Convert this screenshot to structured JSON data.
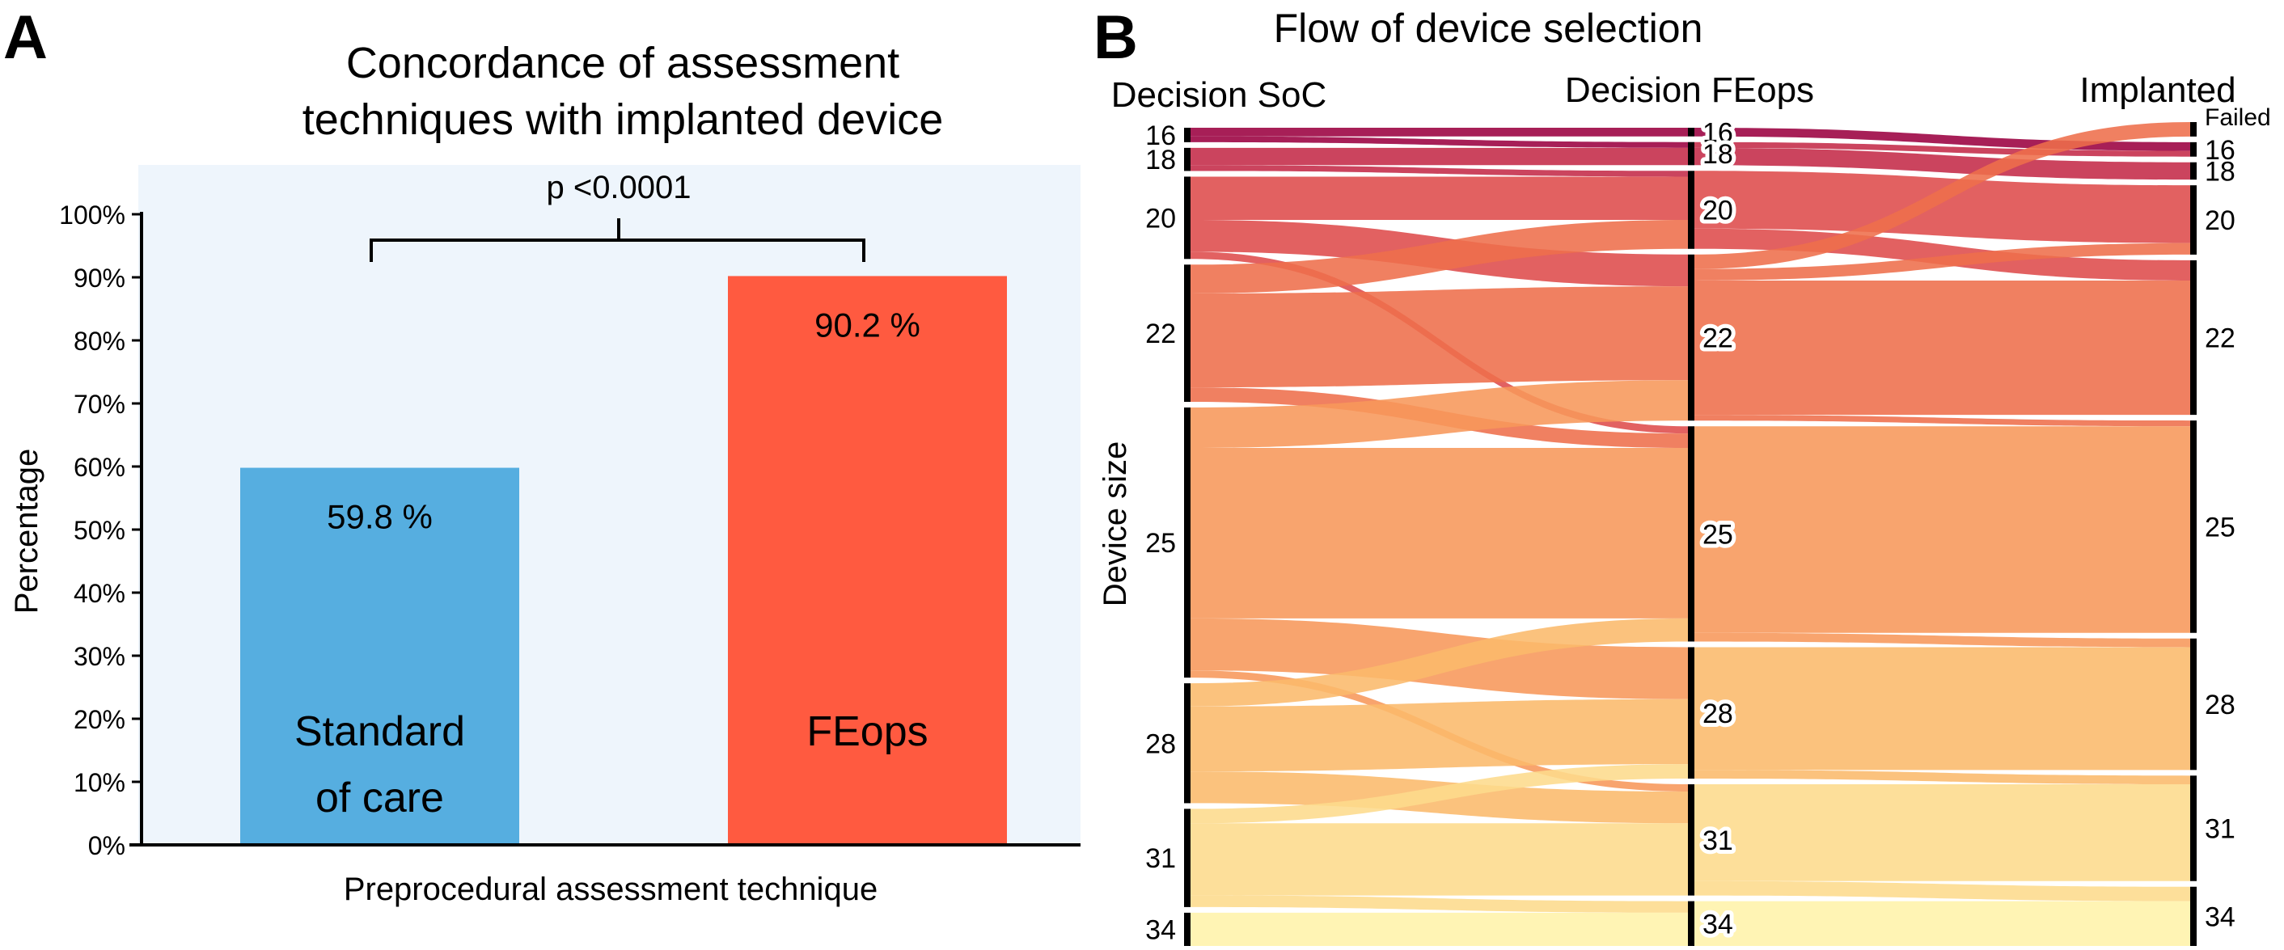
{
  "chart_data": [
    {
      "panel_label": "A",
      "type": "bar",
      "title": "Concordance of assessment techniques with implanted device",
      "title_lines": [
        "Concordance of assessment",
        "techniques with implanted device"
      ],
      "xlabel": "Preprocedural assessment technique",
      "ylabel": "Percentage",
      "categories": [
        "Standard of care",
        "FEops"
      ],
      "category_lines": [
        [
          "Standard",
          "of care"
        ],
        [
          "FEops"
        ]
      ],
      "values": [
        59.8,
        90.2
      ],
      "data_labels": [
        "59.8 %",
        "90.2 %"
      ],
      "ylim": [
        0,
        100
      ],
      "yticks": [
        "0%",
        "10%",
        "20%",
        "30%",
        "40%",
        "50%",
        "60%",
        "70%",
        "80%",
        "90%",
        "100%"
      ],
      "annotation": "p <0.0001",
      "colors": {
        "Standard of care": "#56aee0",
        "FEops": "#ff5a40",
        "background": "#eef5fc"
      },
      "grid": false
    },
    {
      "panel_label": "B",
      "type": "sankey",
      "title": "Flow of device selection",
      "ylabel": "Device size",
      "columns": [
        {
          "name": "Decision SoC",
          "nodes": [
            "16",
            "18",
            "20",
            "22",
            "25",
            "28",
            "31",
            "34"
          ]
        },
        {
          "name": "Decision FEops",
          "nodes": [
            "16",
            "18",
            "20",
            "22",
            "25",
            "28",
            "31",
            "34"
          ]
        },
        {
          "name": "Implanted",
          "nodes": [
            "Failed",
            "16",
            "18",
            "20",
            "22",
            "25",
            "28",
            "31",
            "34"
          ]
        }
      ],
      "node_colors": {
        "Failed": "#f26b3c",
        "16": "#9b0040",
        "18": "#c42a48",
        "20": "#de4b4b",
        "22": "#ee6e4b",
        "25": "#f7975a",
        "28": "#fbb96b",
        "31": "#fddb8c",
        "34": "#fff3aa"
      },
      "flows_note_units": "relative (estimated)",
      "flows": [
        [
          [
            "16",
            "16",
            6
          ],
          [
            "16",
            "18",
            4
          ],
          [
            "18",
            "18",
            12
          ],
          [
            "18",
            "20",
            4
          ],
          [
            "20",
            "20",
            30
          ],
          [
            "20",
            "22",
            22
          ],
          [
            "20",
            "25",
            5
          ],
          [
            "22",
            "20",
            20
          ],
          [
            "22",
            "22",
            65
          ],
          [
            "22",
            "25",
            10
          ],
          [
            "25",
            "22",
            28
          ],
          [
            "25",
            "25",
            118
          ],
          [
            "25",
            "28",
            36
          ],
          [
            "25",
            "31",
            5
          ],
          [
            "28",
            "25",
            16
          ],
          [
            "28",
            "28",
            45
          ],
          [
            "28",
            "31",
            22
          ],
          [
            "31",
            "28",
            10
          ],
          [
            "31",
            "31",
            50
          ],
          [
            "31",
            "34",
            8
          ],
          [
            "34",
            "34",
            23
          ]
        ],
        [
          [
            "16",
            "16",
            6
          ],
          [
            "18",
            "16",
            4
          ],
          [
            "18",
            "18",
            12
          ],
          [
            "20",
            "20",
            40
          ],
          [
            "20",
            "22",
            14
          ],
          [
            "22",
            "Failed",
            10
          ],
          [
            "22",
            "20",
            8
          ],
          [
            "22",
            "22",
            93
          ],
          [
            "22",
            "25",
            4
          ],
          [
            "25",
            "25",
            143
          ],
          [
            "25",
            "28",
            6
          ],
          [
            "28",
            "28",
            85
          ],
          [
            "28",
            "31",
            6
          ],
          [
            "31",
            "31",
            67
          ],
          [
            "31",
            "34",
            10
          ],
          [
            "34",
            "34",
            31
          ]
        ]
      ]
    }
  ]
}
